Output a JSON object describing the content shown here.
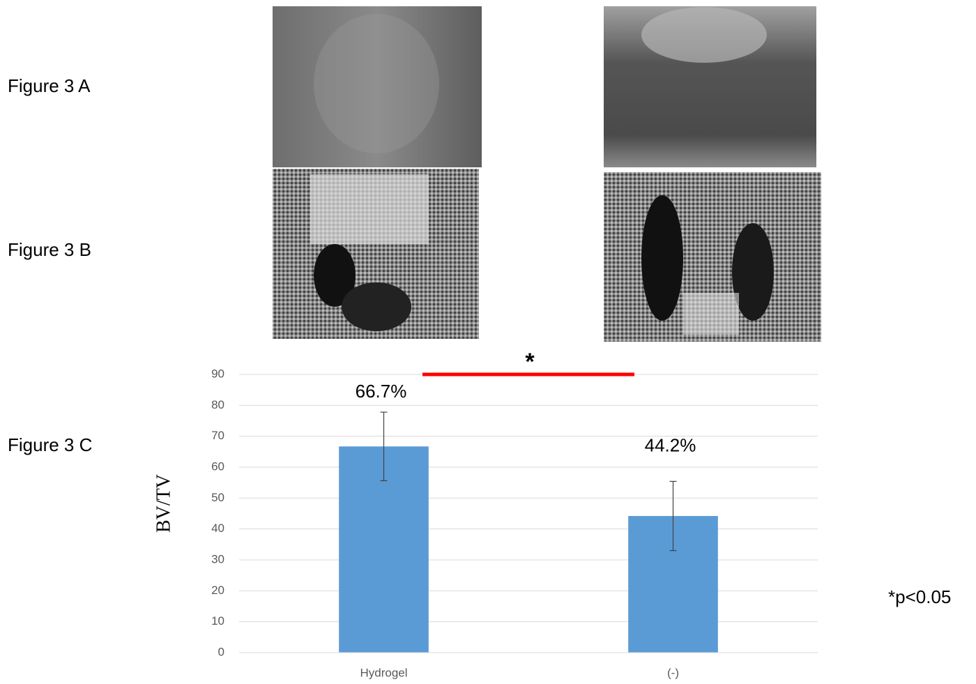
{
  "figure_labels": [
    "Figure 3 A",
    "Figure 3 B",
    "Figure 3 C"
  ],
  "chart_data": {
    "type": "bar",
    "y_label": "BV/TV",
    "categories": [
      "Hydrogel",
      "(-)"
    ],
    "values": [
      66.7,
      44.2
    ],
    "value_labels": [
      "66.7%",
      "44.2%"
    ],
    "errors": [
      11.1,
      11.2
    ],
    "color": "#5b9bd5",
    "ylim": [
      0,
      90
    ],
    "yticks": [
      0,
      10,
      20,
      30,
      40,
      50,
      60,
      70,
      80,
      90
    ],
    "grid": true,
    "significance": {
      "label": "*",
      "color": "#ff0000"
    },
    "footnote": "*p<0.05"
  }
}
